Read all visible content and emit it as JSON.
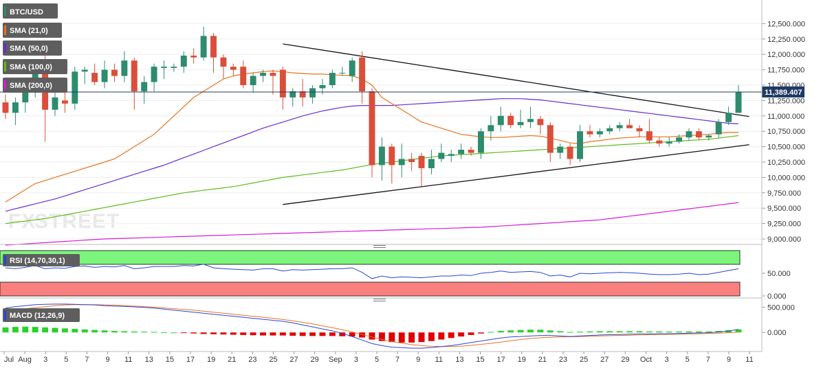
{
  "chart_data": {
    "type": "candlestick",
    "symbol": "BTC/USD",
    "watermark": {
      "fx": "FX",
      "street": "STREET"
    },
    "colors": {
      "up": "#2e8b6e",
      "down": "#d94f3a",
      "sma21": "#e8731e",
      "sma50": "#6a2bd1",
      "sma100": "#5dbb1e",
      "sma200": "#d61bd6",
      "rsi": "#2446d8",
      "macd": "#2b45d8",
      "signal": "#e8731e",
      "hist_pos": "#2bd12b",
      "hist_neg": "#e00000",
      "overbought": "#7cf57c",
      "oversold": "#fa7f7f",
      "price_line": "#1f3a64"
    },
    "legend": [
      "SMA (21,0)",
      "SMA (50,0)",
      "SMA (100,0)",
      "SMA (200,0)"
    ],
    "last_price": "11,389.407",
    "ylim": [
      9000,
      12750
    ],
    "y_ticks": [
      9000,
      9250,
      9500,
      9750,
      10000,
      10250,
      10500,
      10750,
      11000,
      11250,
      11500,
      11750,
      12000,
      12250,
      12500
    ],
    "y_tick_labels": [
      "9,000.000",
      "9,250.000",
      "9,500.000",
      "9,750.000",
      "10,000.000",
      "10,250.000",
      "10,500.000",
      "10,750.000",
      "11,000.000",
      "11,250.000",
      "11,500.000",
      "11,750.000",
      "12,000.000",
      "12,250.000",
      "12,500.000"
    ],
    "x_labels": [
      "Jul",
      "Aug",
      "3",
      "5",
      "7",
      "9",
      "11",
      "13",
      "15",
      "17",
      "19",
      "21",
      "23",
      "25",
      "27",
      "29",
      "Sep",
      "3",
      "5",
      "7",
      "9",
      "11",
      "13",
      "15",
      "17",
      "19",
      "21",
      "23",
      "25",
      "27",
      "29",
      "Oct",
      "3",
      "5",
      "7",
      "9",
      "11"
    ],
    "candles": [
      {
        "o": 11220,
        "h": 11350,
        "l": 10950,
        "c": 11050
      },
      {
        "o": 11050,
        "h": 11300,
        "l": 10850,
        "c": 11220
      },
      {
        "o": 11220,
        "h": 11500,
        "l": 11050,
        "c": 11450
      },
      {
        "o": 11450,
        "h": 11900,
        "l": 11300,
        "c": 11780
      },
      {
        "o": 11780,
        "h": 12100,
        "l": 10580,
        "c": 11100
      },
      {
        "o": 11100,
        "h": 11450,
        "l": 11000,
        "c": 11300
      },
      {
        "o": 11250,
        "h": 11450,
        "l": 11050,
        "c": 11200
      },
      {
        "o": 11200,
        "h": 11800,
        "l": 11100,
        "c": 11720
      },
      {
        "o": 11720,
        "h": 11800,
        "l": 11520,
        "c": 11750
      },
      {
        "o": 11700,
        "h": 11850,
        "l": 11500,
        "c": 11550
      },
      {
        "o": 11550,
        "h": 11900,
        "l": 11450,
        "c": 11750
      },
      {
        "o": 11750,
        "h": 11850,
        "l": 11550,
        "c": 11650
      },
      {
        "o": 11650,
        "h": 12050,
        "l": 11550,
        "c": 11900
      },
      {
        "o": 11900,
        "h": 11950,
        "l": 11100,
        "c": 11400
      },
      {
        "o": 11400,
        "h": 11650,
        "l": 11200,
        "c": 11550
      },
      {
        "o": 11550,
        "h": 11850,
        "l": 11400,
        "c": 11800
      },
      {
        "o": 11780,
        "h": 11900,
        "l": 11600,
        "c": 11800
      },
      {
        "o": 11780,
        "h": 11850,
        "l": 11720,
        "c": 11800
      },
      {
        "o": 11800,
        "h": 12050,
        "l": 11700,
        "c": 11980
      },
      {
        "o": 11980,
        "h": 12100,
        "l": 11850,
        "c": 11950
      },
      {
        "o": 11950,
        "h": 12450,
        "l": 11900,
        "c": 12300
      },
      {
        "o": 12300,
        "h": 12350,
        "l": 11700,
        "c": 11950
      },
      {
        "o": 11950,
        "h": 12000,
        "l": 11600,
        "c": 11800
      },
      {
        "o": 11800,
        "h": 11850,
        "l": 11650,
        "c": 11750
      },
      {
        "o": 11800,
        "h": 11900,
        "l": 11450,
        "c": 11500
      },
      {
        "o": 11500,
        "h": 11700,
        "l": 11380,
        "c": 11650
      },
      {
        "o": 11650,
        "h": 11750,
        "l": 11550,
        "c": 11700
      },
      {
        "o": 11700,
        "h": 11750,
        "l": 11350,
        "c": 11650
      },
      {
        "o": 11750,
        "h": 11800,
        "l": 11100,
        "c": 11300
      },
      {
        "o": 11300,
        "h": 11450,
        "l": 11150,
        "c": 11400
      },
      {
        "o": 11400,
        "h": 11600,
        "l": 11150,
        "c": 11300
      },
      {
        "o": 11300,
        "h": 11500,
        "l": 11200,
        "c": 11450
      },
      {
        "o": 11450,
        "h": 11600,
        "l": 11350,
        "c": 11500
      },
      {
        "o": 11500,
        "h": 11750,
        "l": 11450,
        "c": 11700
      },
      {
        "o": 11700,
        "h": 11800,
        "l": 11650,
        "c": 11700
      },
      {
        "o": 11650,
        "h": 11950,
        "l": 11550,
        "c": 11900
      },
      {
        "o": 11950,
        "h": 12050,
        "l": 11200,
        "c": 11400
      },
      {
        "o": 11400,
        "h": 11450,
        "l": 10000,
        "c": 10200
      },
      {
        "o": 10200,
        "h": 10650,
        "l": 9950,
        "c": 10500
      },
      {
        "o": 10500,
        "h": 10550,
        "l": 9900,
        "c": 10200
      },
      {
        "o": 10200,
        "h": 10550,
        "l": 10000,
        "c": 10300
      },
      {
        "o": 10300,
        "h": 10400,
        "l": 10100,
        "c": 10250
      },
      {
        "o": 10350,
        "h": 10400,
        "l": 9850,
        "c": 10150
      },
      {
        "o": 10150,
        "h": 10450,
        "l": 10050,
        "c": 10300
      },
      {
        "o": 10300,
        "h": 10550,
        "l": 10250,
        "c": 10400
      },
      {
        "o": 10350,
        "h": 10450,
        "l": 10250,
        "c": 10380
      },
      {
        "o": 10380,
        "h": 10550,
        "l": 10300,
        "c": 10450
      },
      {
        "o": 10450,
        "h": 10500,
        "l": 10350,
        "c": 10400
      },
      {
        "o": 10400,
        "h": 10800,
        "l": 10300,
        "c": 10750
      },
      {
        "o": 10750,
        "h": 11000,
        "l": 10600,
        "c": 10850
      },
      {
        "o": 10850,
        "h": 11150,
        "l": 10750,
        "c": 11000
      },
      {
        "o": 11000,
        "h": 11050,
        "l": 10800,
        "c": 10850
      },
      {
        "o": 10850,
        "h": 11100,
        "l": 10800,
        "c": 10900
      },
      {
        "o": 10900,
        "h": 11150,
        "l": 10800,
        "c": 10950
      },
      {
        "o": 10950,
        "h": 11000,
        "l": 10700,
        "c": 10850
      },
      {
        "o": 10850,
        "h": 10900,
        "l": 10250,
        "c": 10400
      },
      {
        "o": 10400,
        "h": 10550,
        "l": 10300,
        "c": 10500
      },
      {
        "o": 10500,
        "h": 10550,
        "l": 10200,
        "c": 10300
      },
      {
        "o": 10300,
        "h": 10850,
        "l": 10250,
        "c": 10750
      },
      {
        "o": 10750,
        "h": 10850,
        "l": 10650,
        "c": 10700
      },
      {
        "o": 10700,
        "h": 10800,
        "l": 10650,
        "c": 10750
      },
      {
        "o": 10750,
        "h": 10850,
        "l": 10700,
        "c": 10800
      },
      {
        "o": 10800,
        "h": 10900,
        "l": 10750,
        "c": 10850
      },
      {
        "o": 10850,
        "h": 10950,
        "l": 10800,
        "c": 10800
      },
      {
        "o": 10800,
        "h": 10850,
        "l": 10650,
        "c": 10750
      },
      {
        "o": 10750,
        "h": 10950,
        "l": 10550,
        "c": 10600
      },
      {
        "o": 10600,
        "h": 10650,
        "l": 10500,
        "c": 10550
      },
      {
        "o": 10550,
        "h": 10650,
        "l": 10500,
        "c": 10580
      },
      {
        "o": 10580,
        "h": 10700,
        "l": 10550,
        "c": 10650
      },
      {
        "o": 10650,
        "h": 10800,
        "l": 10600,
        "c": 10750
      },
      {
        "o": 10750,
        "h": 10800,
        "l": 10600,
        "c": 10650
      },
      {
        "o": 10650,
        "h": 10700,
        "l": 10600,
        "c": 10680
      },
      {
        "o": 10700,
        "h": 10950,
        "l": 10650,
        "c": 10900
      },
      {
        "o": 10900,
        "h": 11150,
        "l": 10850,
        "c": 11050
      },
      {
        "o": 11050,
        "h": 11500,
        "l": 11050,
        "c": 11389
      }
    ],
    "sma21": [
      9600,
      9700,
      9800,
      9900,
      9950,
      10000,
      10050,
      10100,
      10150,
      10200,
      10250,
      10300,
      10400,
      10500,
      10600,
      10700,
      10850,
      11000,
      11150,
      11300,
      11400,
      11500,
      11600,
      11650,
      11680,
      11700,
      11720,
      11730,
      11720,
      11700,
      11690,
      11680,
      11680,
      11670,
      11660,
      11650,
      11600,
      11500,
      11300,
      11200,
      11100,
      11000,
      10900,
      10850,
      10800,
      10750,
      10700,
      10680,
      10660,
      10650,
      10650,
      10660,
      10670,
      10680,
      10670,
      10640,
      10600,
      10560,
      10550,
      10580,
      10600,
      10620,
      10640,
      10650,
      10660,
      10660,
      10660,
      10660,
      10670,
      10680,
      10690,
      10700,
      10720,
      10730,
      10730
    ],
    "sma50": [
      9450,
      9490,
      9530,
      9570,
      9610,
      9650,
      9700,
      9750,
      9800,
      9850,
      9900,
      9950,
      10000,
      10050,
      10100,
      10150,
      10200,
      10260,
      10320,
      10380,
      10440,
      10500,
      10560,
      10620,
      10680,
      10740,
      10800,
      10850,
      10900,
      10950,
      11000,
      11040,
      11080,
      11110,
      11140,
      11160,
      11170,
      11170,
      11170,
      11170,
      11180,
      11190,
      11200,
      11210,
      11220,
      11230,
      11240,
      11250,
      11260,
      11270,
      11280,
      11280,
      11280,
      11270,
      11260,
      11240,
      11220,
      11200,
      11180,
      11160,
      11140,
      11120,
      11100,
      11080,
      11060,
      11040,
      11020,
      11000,
      10980,
      10960,
      10940,
      10920,
      10900,
      10880,
      10870
    ],
    "sma100": [
      9250,
      9270,
      9290,
      9310,
      9330,
      9360,
      9390,
      9420,
      9450,
      9480,
      9510,
      9540,
      9570,
      9600,
      9630,
      9660,
      9690,
      9720,
      9750,
      9770,
      9790,
      9810,
      9830,
      9850,
      9880,
      9910,
      9940,
      9970,
      10000,
      10020,
      10040,
      10060,
      10080,
      10100,
      10120,
      10150,
      10180,
      10210,
      10230,
      10250,
      10270,
      10290,
      10310,
      10330,
      10350,
      10360,
      10370,
      10380,
      10390,
      10400,
      10410,
      10420,
      10430,
      10440,
      10450,
      10460,
      10470,
      10480,
      10490,
      10500,
      10510,
      10520,
      10530,
      10540,
      10550,
      10560,
      10570,
      10580,
      10590,
      10600,
      10610,
      10620,
      10640,
      10660,
      10680
    ],
    "sma200": [
      8900,
      8910,
      8920,
      8930,
      8940,
      8950,
      8960,
      8970,
      8980,
      8990,
      9000,
      9005,
      9010,
      9015,
      9020,
      9025,
      9030,
      9035,
      9040,
      9045,
      9050,
      9055,
      9060,
      9065,
      9070,
      9075,
      9080,
      9085,
      9090,
      9095,
      9100,
      9105,
      9110,
      9115,
      9120,
      9125,
      9130,
      9135,
      9140,
      9145,
      9150,
      9155,
      9160,
      9165,
      9170,
      9175,
      9180,
      9185,
      9190,
      9200,
      9210,
      9220,
      9230,
      9240,
      9250,
      9260,
      9270,
      9280,
      9290,
      9300,
      9310,
      9330,
      9350,
      9370,
      9390,
      9410,
      9430,
      9450,
      9470,
      9490,
      9510,
      9530,
      9550,
      9570,
      9590
    ],
    "trendline_upper": {
      "from": {
        "i": 28,
        "v": 12170
      },
      "to": {
        "i": 73,
        "v": 11040
      }
    },
    "trendline_lower": {
      "from": {
        "i": 28,
        "v": 9560
      },
      "to": {
        "i": 73,
        "v": 10490
      }
    },
    "rsi": {
      "label": "RSI (14,70,30,1)",
      "ylim": [
        0,
        100
      ],
      "y_ticks": [
        0,
        50
      ],
      "y_tick_labels": [
        "0.000",
        "50.000"
      ],
      "values": [
        62,
        60,
        63,
        67,
        60,
        62,
        61,
        65,
        66,
        63,
        65,
        64,
        67,
        60,
        62,
        65,
        65,
        65,
        67,
        66,
        70,
        62,
        60,
        59,
        58,
        57,
        60,
        60,
        55,
        58,
        57,
        58,
        59,
        60,
        60,
        62,
        52,
        38,
        44,
        40,
        42,
        41,
        40,
        42,
        44,
        44,
        46,
        45,
        50,
        52,
        55,
        52,
        53,
        54,
        52,
        44,
        46,
        42,
        50,
        49,
        50,
        51,
        52,
        51,
        50,
        48,
        47,
        47,
        48,
        50,
        47,
        48,
        52,
        56,
        60
      ]
    },
    "macd": {
      "label": "MACD (12,26,9)",
      "ylim": [
        -350,
        600
      ],
      "y_ticks": [
        0,
        500
      ],
      "y_tick_labels": [
        "0.000",
        "500.000"
      ],
      "macd": [
        480,
        510,
        530,
        550,
        555,
        560,
        560,
        555,
        550,
        545,
        530,
        520,
        515,
        505,
        495,
        480,
        460,
        440,
        420,
        400,
        380,
        360,
        340,
        320,
        300,
        280,
        260,
        240,
        220,
        190,
        150,
        110,
        70,
        30,
        -20,
        -80,
        -150,
        -220,
        -260,
        -290,
        -300,
        -310,
        -310,
        -300,
        -280,
        -260,
        -230,
        -200,
        -170,
        -140,
        -110,
        -90,
        -80,
        -70,
        -60,
        -60,
        -70,
        -80,
        -70,
        -60,
        -50,
        -45,
        -40,
        -35,
        -30,
        -30,
        -25,
        -25,
        -20,
        -15,
        -10,
        -5,
        10,
        30,
        60
      ],
      "signal": [
        430,
        450,
        470,
        490,
        510,
        530,
        545,
        550,
        550,
        548,
        545,
        540,
        530,
        520,
        510,
        500,
        485,
        470,
        455,
        440,
        420,
        400,
        380,
        360,
        340,
        320,
        300,
        280,
        255,
        230,
        200,
        170,
        130,
        95,
        55,
        10,
        -40,
        -90,
        -140,
        -180,
        -210,
        -240,
        -260,
        -275,
        -280,
        -280,
        -270,
        -255,
        -235,
        -215,
        -190,
        -165,
        -140,
        -120,
        -105,
        -95,
        -90,
        -85,
        -80,
        -75,
        -70,
        -65,
        -60,
        -55,
        -50,
        -45,
        -40,
        -38,
        -35,
        -30,
        -25,
        -20,
        -15,
        -5,
        10
      ],
      "hist": [
        100,
        110,
        115,
        110,
        100,
        90,
        80,
        70,
        60,
        50,
        40,
        30,
        25,
        20,
        15,
        10,
        5,
        0,
        -10,
        -20,
        -30,
        -35,
        -40,
        -45,
        -50,
        -55,
        -60,
        -60,
        -60,
        -65,
        -70,
        -70,
        -70,
        -70,
        -75,
        -80,
        -100,
        -140,
        -170,
        -190,
        -200,
        -200,
        -190,
        -170,
        -140,
        -110,
        -80,
        -50,
        -20,
        10,
        30,
        40,
        50,
        55,
        55,
        40,
        25,
        10,
        15,
        20,
        25,
        25,
        25,
        25,
        25,
        20,
        20,
        18,
        18,
        20,
        20,
        20,
        30,
        45,
        60
      ]
    }
  }
}
